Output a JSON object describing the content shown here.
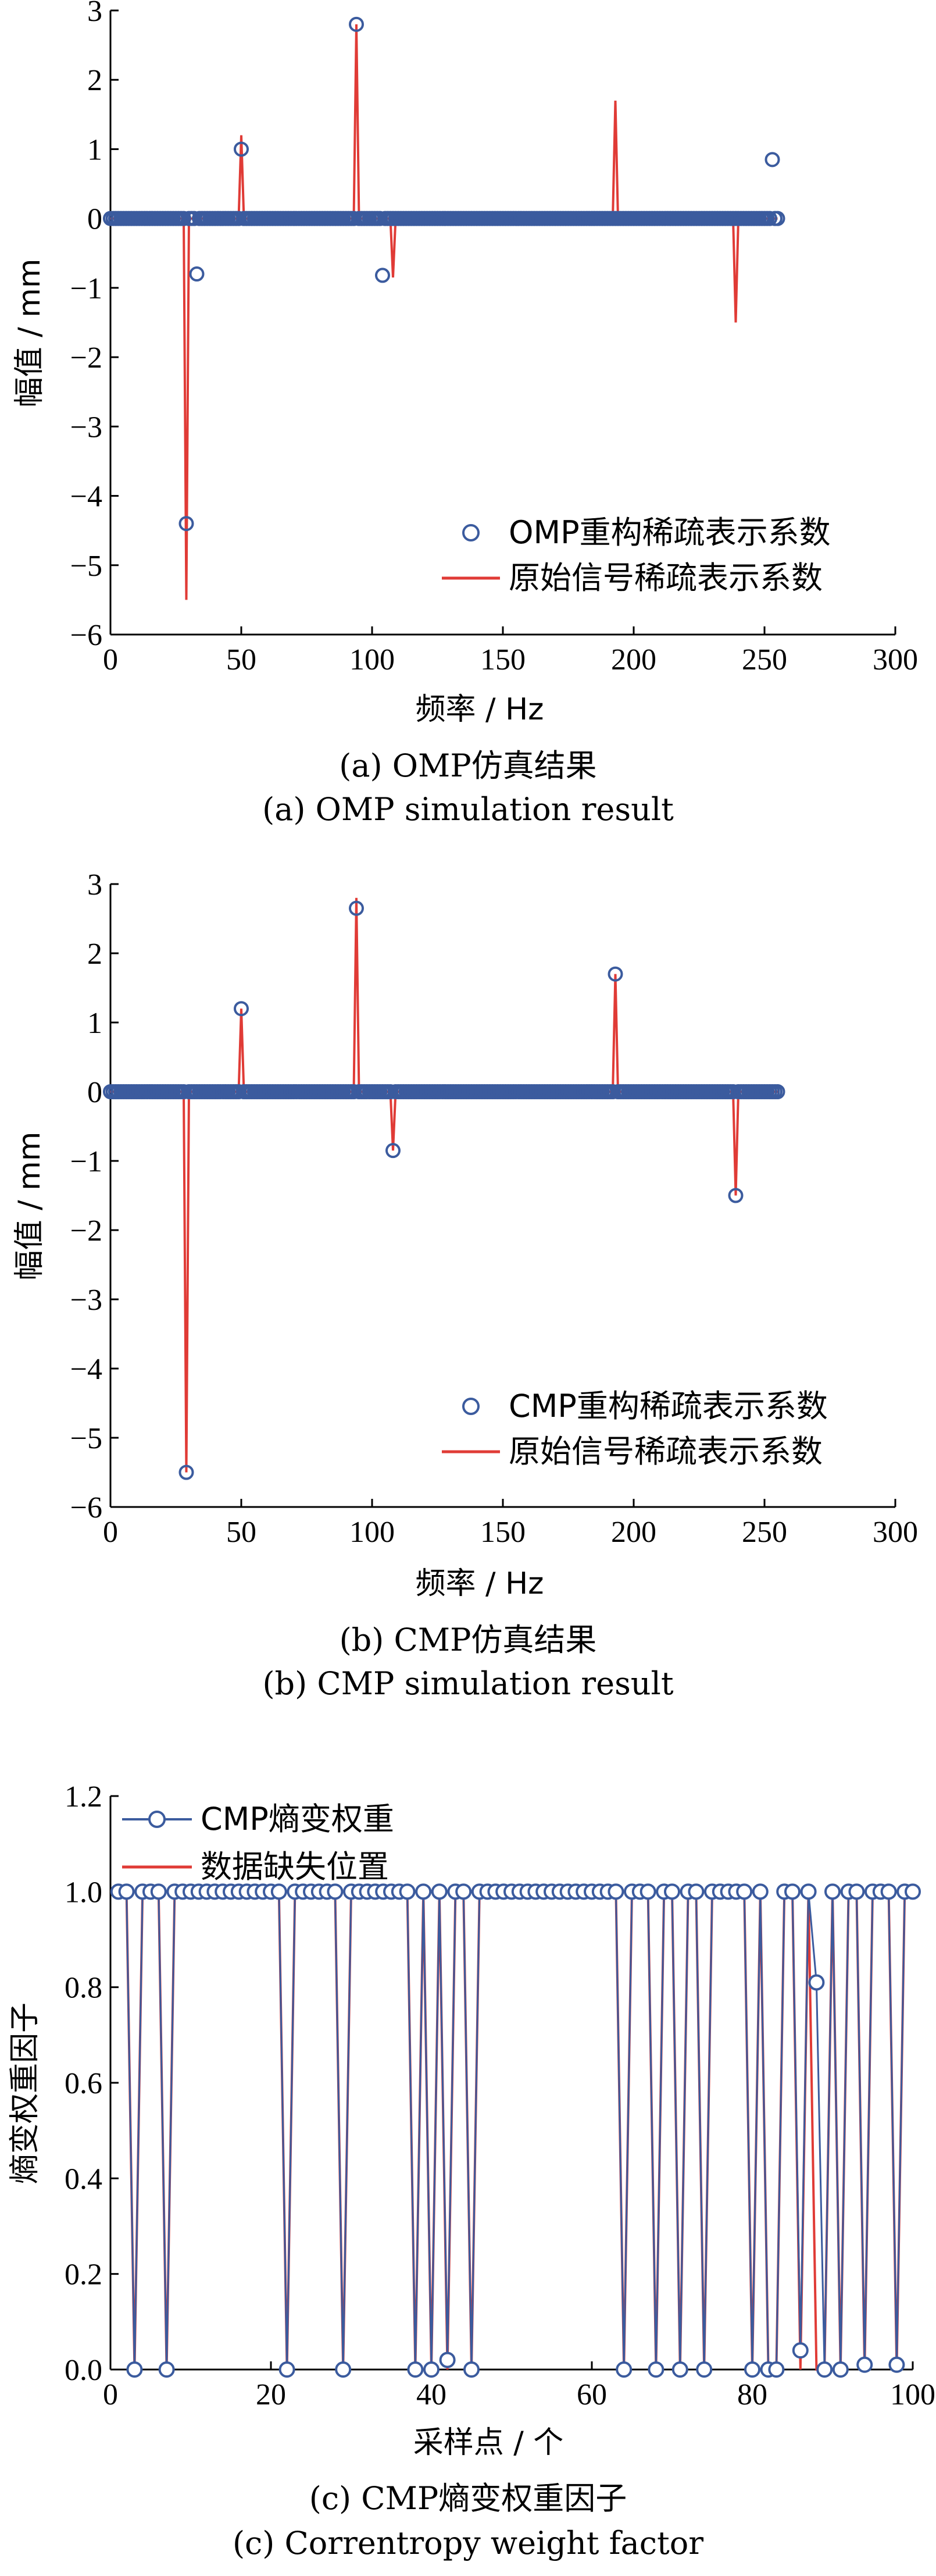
{
  "colors": {
    "marker": "#3b5b9e",
    "line": "#e03b36",
    "axis": "#000000",
    "weight_line": "#3b5b9e"
  },
  "chart_data": [
    {
      "type": "scatter",
      "caption_cn": "(a)  OMP仿真结果",
      "caption_en": "(a) OMP simulation result",
      "xlabel": "频率 / Hz",
      "ylabel": "幅值 / mm",
      "xlim": [
        0,
        300
      ],
      "ylim": [
        -6,
        3
      ],
      "xticks": [
        0,
        50,
        100,
        150,
        200,
        250,
        300
      ],
      "yticks": [
        -6,
        -5,
        -4,
        -3,
        -2,
        -1,
        0,
        1,
        2,
        3
      ],
      "xtick_labels": [
        "0",
        "50",
        "100",
        "150",
        "200",
        "250",
        "300"
      ],
      "ytick_labels": [
        "−6",
        "−5",
        "−4",
        "−3",
        "−2",
        "−1",
        "0",
        "1",
        "2",
        "3"
      ],
      "legend_position": "bottom-right",
      "series": [
        {
          "name": "OMP重构稀疏表示系数",
          "style": "markers",
          "n": 256,
          "nonzero": [
            {
              "x": 29,
              "y": -4.4
            },
            {
              "x": 33,
              "y": -0.8
            },
            {
              "x": 50,
              "y": 1.0
            },
            {
              "x": 94,
              "y": 2.8
            },
            {
              "x": 104,
              "y": -0.82
            },
            {
              "x": 253,
              "y": 0.85
            }
          ]
        },
        {
          "name": "原始信号稀疏表示系数",
          "style": "line",
          "n": 256,
          "nonzero": [
            {
              "x": 29,
              "y": -5.5
            },
            {
              "x": 50,
              "y": 1.2
            },
            {
              "x": 94,
              "y": 2.8
            },
            {
              "x": 108,
              "y": -0.85
            },
            {
              "x": 193,
              "y": 1.7
            },
            {
              "x": 239,
              "y": -1.5
            }
          ]
        }
      ]
    },
    {
      "type": "scatter",
      "caption_cn": "(b)  CMP仿真结果",
      "caption_en": "(b) CMP simulation result",
      "xlabel": "频率 / Hz",
      "ylabel": "幅值 / mm",
      "xlim": [
        0,
        300
      ],
      "ylim": [
        -6,
        3
      ],
      "xticks": [
        0,
        50,
        100,
        150,
        200,
        250,
        300
      ],
      "yticks": [
        -6,
        -5,
        -4,
        -3,
        -2,
        -1,
        0,
        1,
        2,
        3
      ],
      "xtick_labels": [
        "0",
        "50",
        "100",
        "150",
        "200",
        "250",
        "300"
      ],
      "ytick_labels": [
        "−6",
        "−5",
        "−4",
        "−3",
        "−2",
        "−1",
        "0",
        "1",
        "2",
        "3"
      ],
      "legend_position": "bottom-right",
      "series": [
        {
          "name": "CMP重构稀疏表示系数",
          "style": "markers",
          "n": 256,
          "nonzero": [
            {
              "x": 29,
              "y": -5.5
            },
            {
              "x": 50,
              "y": 1.2
            },
            {
              "x": 94,
              "y": 2.65
            },
            {
              "x": 108,
              "y": -0.85
            },
            {
              "x": 193,
              "y": 1.7
            },
            {
              "x": 239,
              "y": -1.5
            }
          ]
        },
        {
          "name": "原始信号稀疏表示系数",
          "style": "line",
          "n": 256,
          "nonzero": [
            {
              "x": 29,
              "y": -5.5
            },
            {
              "x": 50,
              "y": 1.2
            },
            {
              "x": 94,
              "y": 2.8
            },
            {
              "x": 108,
              "y": -0.85
            },
            {
              "x": 193,
              "y": 1.7
            },
            {
              "x": 239,
              "y": -1.5
            }
          ]
        }
      ]
    },
    {
      "type": "line",
      "caption_cn": "(c)  CMP熵变权重因子",
      "caption_en": "(c) Correntropy weight factor",
      "xlabel": "采样点 / 个",
      "ylabel": "熵变权重因子",
      "xlim": [
        0,
        100
      ],
      "ylim": [
        0,
        1.2
      ],
      "xticks": [
        0,
        20,
        40,
        60,
        80,
        100
      ],
      "yticks": [
        0,
        0.2,
        0.4,
        0.6,
        0.8,
        1.0,
        1.2
      ],
      "xtick_labels": [
        "0",
        "20",
        "40",
        "60",
        "80",
        "100"
      ],
      "ytick_labels": [
        "0.0",
        "0.2",
        "0.4",
        "0.6",
        "0.8",
        "1.0",
        "1.2"
      ],
      "legend_position": "top-left",
      "series": [
        {
          "name": "CMP熵变权重",
          "style": "line-markers",
          "x_start": 1,
          "n": 100,
          "values_note": "1.0 everywhere except listed points",
          "exceptions": [
            {
              "x": 3,
              "y": 0
            },
            {
              "x": 7,
              "y": 0
            },
            {
              "x": 22,
              "y": 0
            },
            {
              "x": 29,
              "y": 0
            },
            {
              "x": 38,
              "y": 0
            },
            {
              "x": 40,
              "y": 0
            },
            {
              "x": 42,
              "y": 0.02
            },
            {
              "x": 45,
              "y": 0
            },
            {
              "x": 64,
              "y": 0
            },
            {
              "x": 68,
              "y": 0
            },
            {
              "x": 71,
              "y": 0
            },
            {
              "x": 74,
              "y": 0
            },
            {
              "x": 80,
              "y": 0
            },
            {
              "x": 82,
              "y": 0
            },
            {
              "x": 83,
              "y": 0
            },
            {
              "x": 86,
              "y": 0.04
            },
            {
              "x": 88,
              "y": 0.81
            },
            {
              "x": 89,
              "y": 0
            },
            {
              "x": 91,
              "y": 0
            },
            {
              "x": 94,
              "y": 0.01
            },
            {
              "x": 98,
              "y": 0.01
            }
          ]
        },
        {
          "name": "数据缺失位置",
          "style": "line",
          "x_start": 1,
          "n": 100,
          "values_note": "1.0 everywhere except listed points (0)",
          "missing": [
            3,
            7,
            22,
            29,
            38,
            40,
            42,
            45,
            64,
            68,
            71,
            74,
            80,
            82,
            83,
            86,
            88,
            89,
            91,
            94,
            98
          ]
        }
      ]
    }
  ]
}
